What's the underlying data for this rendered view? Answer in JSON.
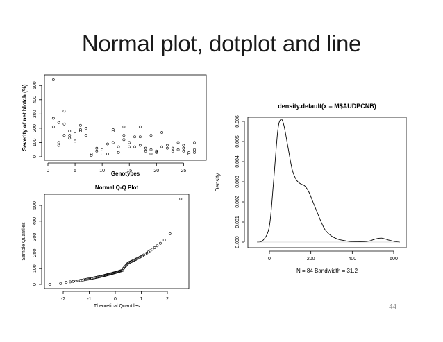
{
  "slide": {
    "title": "Normal plot, dotplot and line",
    "page_number": "44"
  },
  "chart_data": [
    {
      "type": "scatter",
      "title": "",
      "xlabel": "Genotypes",
      "ylabel": "Severity of net blotch (%)",
      "xlim": [
        0,
        28
      ],
      "ylim": [
        0,
        560
      ],
      "xticks": [
        0,
        5,
        10,
        15,
        20,
        25
      ],
      "yticks": [
        0,
        100,
        200,
        300,
        400,
        500
      ],
      "points": [
        [
          1,
          540
        ],
        [
          1,
          270
        ],
        [
          1,
          210
        ],
        [
          2,
          240
        ],
        [
          2,
          100
        ],
        [
          2,
          80
        ],
        [
          3,
          320
        ],
        [
          3,
          230
        ],
        [
          3,
          150
        ],
        [
          4,
          180
        ],
        [
          4,
          150
        ],
        [
          4,
          130
        ],
        [
          5,
          160
        ],
        [
          5,
          110
        ],
        [
          6,
          220
        ],
        [
          6,
          190
        ],
        [
          6,
          180
        ],
        [
          7,
          200
        ],
        [
          7,
          150
        ],
        [
          8,
          20
        ],
        [
          8,
          10
        ],
        [
          9,
          60
        ],
        [
          9,
          40
        ],
        [
          10,
          50
        ],
        [
          10,
          20
        ],
        [
          11,
          90
        ],
        [
          11,
          20
        ],
        [
          12,
          190
        ],
        [
          12,
          180
        ],
        [
          12,
          100
        ],
        [
          13,
          70
        ],
        [
          13,
          30
        ],
        [
          14,
          210
        ],
        [
          14,
          150
        ],
        [
          14,
          120
        ],
        [
          15,
          100
        ],
        [
          15,
          70
        ],
        [
          16,
          140
        ],
        [
          16,
          70
        ],
        [
          17,
          210
        ],
        [
          17,
          140
        ],
        [
          17,
          80
        ],
        [
          18,
          60
        ],
        [
          18,
          40
        ],
        [
          19,
          150
        ],
        [
          19,
          50
        ],
        [
          19,
          20
        ],
        [
          20,
          40
        ],
        [
          20,
          30
        ],
        [
          21,
          170
        ],
        [
          21,
          70
        ],
        [
          22,
          80
        ],
        [
          22,
          60
        ],
        [
          23,
          60
        ],
        [
          23,
          40
        ],
        [
          24,
          100
        ],
        [
          24,
          50
        ],
        [
          25,
          80
        ],
        [
          25,
          60
        ],
        [
          25,
          40
        ],
        [
          26,
          30
        ],
        [
          26,
          20
        ],
        [
          27,
          100
        ],
        [
          27,
          50
        ],
        [
          27,
          30
        ]
      ]
    },
    {
      "type": "scatter",
      "title": "Normal Q-Q Plot",
      "xlabel": "Theoretical Quantiles",
      "ylabel": "Sample Quantiles",
      "xlim": [
        -2.6,
        2.6
      ],
      "ylim": [
        -10,
        560
      ],
      "xticks": [
        -2,
        -1,
        0,
        1,
        2
      ],
      "yticks": [
        0,
        100,
        200,
        300,
        400,
        500
      ],
      "n": 84,
      "sample_range": [
        0,
        540
      ]
    },
    {
      "type": "line",
      "title": "density.default(x = M$AUDPCNB)",
      "xlabel": "N = 84   Bandwidth = 31.2",
      "ylabel": "Density",
      "xlim": [
        -80,
        640
      ],
      "ylim": [
        -0.0002,
        0.0066
      ],
      "xticks": [
        0,
        200,
        400,
        600
      ],
      "yticks": [
        0,
        0.001,
        0.002,
        0.003,
        0.004,
        0.005,
        0.006
      ],
      "ytick_labels": [
        "0.000",
        "0.001",
        "0.002",
        "0.003",
        "0.004",
        "0.005",
        "0.006"
      ],
      "series": [
        {
          "x": [
            -60,
            -30,
            0,
            20,
            40,
            55,
            70,
            90,
            110,
            130,
            150,
            170,
            190,
            210,
            230,
            250,
            270,
            300,
            330,
            360,
            390,
            420,
            450,
            480,
            510,
            540,
            570,
            600,
            630
          ],
          "y": [
            0.0,
            0.0001,
            0.0008,
            0.003,
            0.0055,
            0.0061,
            0.0058,
            0.0047,
            0.0036,
            0.0031,
            0.0029,
            0.0028,
            0.0025,
            0.002,
            0.0015,
            0.001,
            0.0006,
            0.0003,
            0.00015,
            8e-05,
            3e-05,
            2e-05,
            2e-05,
            5e-05,
            0.00015,
            0.0002,
            0.00012,
            4e-05,
            0.0
          ]
        }
      ]
    }
  ]
}
